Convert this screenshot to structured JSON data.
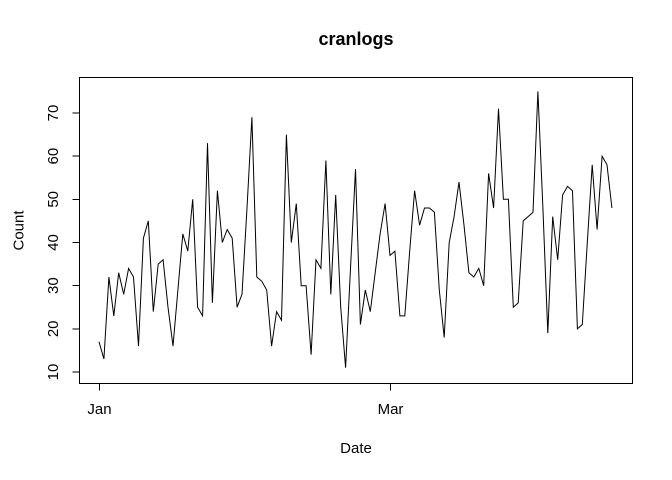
{
  "chart_data": {
    "type": "line",
    "title": "cranlogs",
    "xlabel": "Date",
    "ylabel": "Count",
    "x_description": "daily values starting at the Jan tick (index 0), one point per day",
    "xticks": [
      {
        "label": "Jan",
        "index": 0
      },
      {
        "label": "Mar",
        "index": 59
      }
    ],
    "yticks": [
      10,
      20,
      30,
      40,
      50,
      60,
      70
    ],
    "ylim": [
      7.5,
      78.5
    ],
    "grid": false,
    "legend": false,
    "line_color": "#000000",
    "background_color": "#ffffff",
    "values": [
      17,
      13,
      32,
      23,
      33,
      28,
      34,
      32,
      16,
      41,
      45,
      24,
      35,
      36,
      25,
      16,
      29,
      42,
      38,
      50,
      25,
      23,
      63,
      26,
      52,
      40,
      43,
      41,
      25,
      28,
      48,
      69,
      32,
      31,
      29,
      16,
      24,
      22,
      65,
      40,
      49,
      30,
      30,
      14,
      36,
      34,
      59,
      28,
      51,
      25,
      11,
      34,
      57,
      21,
      29,
      24,
      33,
      42,
      49,
      37,
      38,
      23,
      23,
      38,
      52,
      44,
      48,
      48,
      47,
      29,
      18,
      40,
      46,
      54,
      44,
      33,
      32,
      34,
      30,
      56,
      48,
      71,
      50,
      50,
      25,
      26,
      45,
      46,
      47,
      75,
      48,
      19,
      46,
      36,
      51,
      53,
      52,
      20,
      21,
      40,
      58,
      43,
      60,
      58,
      48
    ]
  }
}
